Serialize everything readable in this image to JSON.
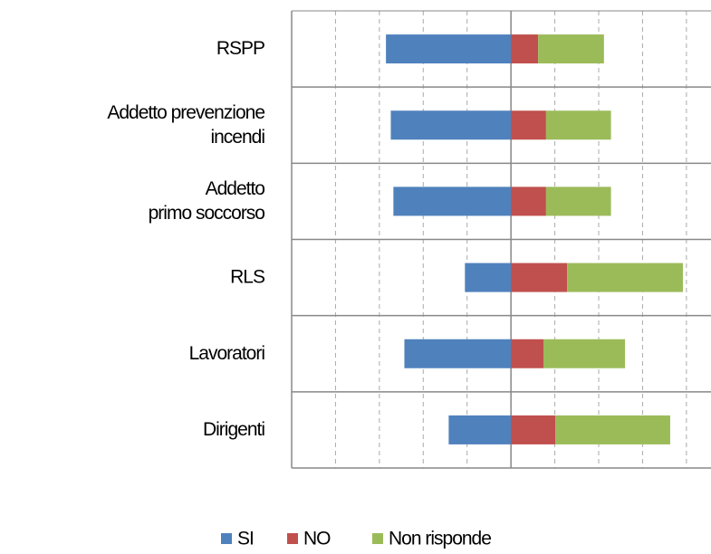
{
  "chart_data": {
    "type": "bar",
    "orientation": "horizontal",
    "stacked": true,
    "categories": [
      [
        "RSPP"
      ],
      [
        "Addetto prevenzione",
        "incendi"
      ],
      [
        "Addetto",
        "primo soccorso"
      ],
      [
        "RLS"
      ],
      [
        "Lavoratori"
      ],
      [
        "Dirigenti"
      ]
    ],
    "series": [
      {
        "name": "SI",
        "color": "#4f81bd",
        "values": [
          -28.5,
          -27.4,
          -26.8,
          -10.5,
          -24.3,
          -14.2
        ]
      },
      {
        "name": "NO",
        "color": "#c0504d",
        "values": [
          6.2,
          8,
          8,
          12.8,
          7.4,
          10.1
        ]
      },
      {
        "name": "Non risponde",
        "color": "#9bbb59",
        "values": [
          15,
          14.8,
          14.8,
          26.4,
          18.6,
          26.2
        ]
      }
    ],
    "xlim": [
      -50,
      45.6
    ],
    "xticks": [
      -40,
      -30,
      -20,
      -10,
      0,
      10,
      20,
      30,
      40
    ],
    "grid": true,
    "legend": "bottom"
  }
}
